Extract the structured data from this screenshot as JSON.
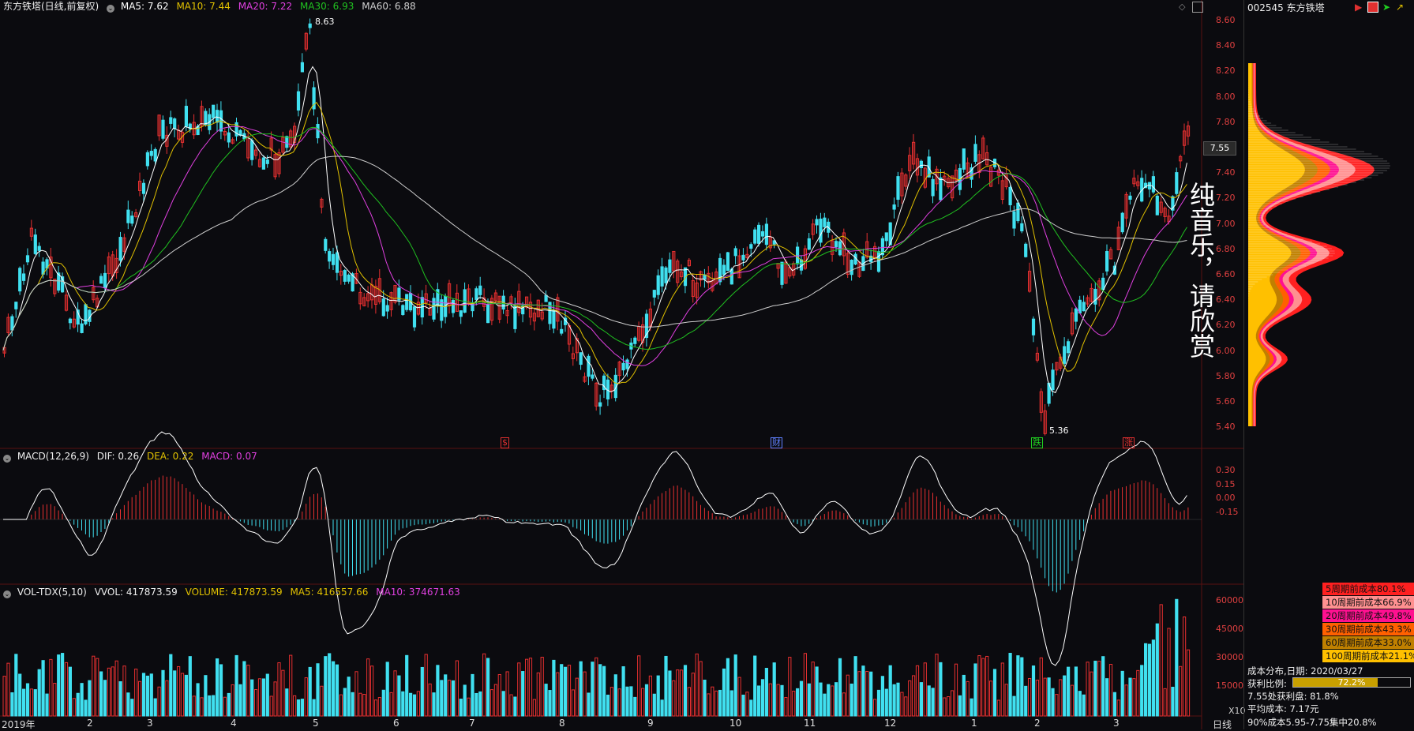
{
  "price_panel": {
    "title": "东方铁塔(日线,前复权)",
    "indicators": [
      {
        "name": "MA5",
        "value": "7.62",
        "color": "#ffffff"
      },
      {
        "name": "MA10",
        "value": "7.44",
        "color": "#e0c000"
      },
      {
        "name": "MA20",
        "value": "7.22",
        "color": "#e040e0"
      },
      {
        "name": "MA30",
        "value": "6.93",
        "color": "#20c020"
      },
      {
        "name": "MA60",
        "value": "6.88",
        "color": "#cfcfcf"
      }
    ],
    "y_ticks": [
      "8.60",
      "8.40",
      "8.20",
      "8.00",
      "7.80",
      "7.60",
      "7.40",
      "7.20",
      "7.00",
      "6.80",
      "6.60",
      "6.40",
      "6.20",
      "6.00",
      "5.80",
      "5.60",
      "5.40"
    ],
    "high_label": "8.63",
    "low_label": "5.36",
    "current_price": "7.55",
    "markers": [
      {
        "label": "$",
        "color": "#e03030"
      },
      {
        "label": "财",
        "color": "#6080ff"
      },
      {
        "label": "跌",
        "color": "#20d020"
      },
      {
        "label": "涨",
        "color": "#e03030"
      }
    ]
  },
  "macd_panel": {
    "title": "MACD(12,26,9)",
    "dif": "DIF: 0.26",
    "dea": "DEA: 0.22",
    "macd": "MACD: 0.07",
    "y_ticks": [
      "0.30",
      "0.15",
      "0.00",
      "-0.15"
    ]
  },
  "vol_panel": {
    "title": "VOL-TDX(5,10)",
    "vvol": "VVOL: 417873.59",
    "volume": "VOLUME: 417873.59",
    "ma5": "MA5: 416557.66",
    "ma10": "MA10: 374671.63",
    "y_ticks": [
      "60000",
      "45000",
      "30000",
      "15000"
    ],
    "unit": "X10"
  },
  "x_axis": {
    "labels": [
      "2019年",
      "2",
      "3",
      "4",
      "5",
      "6",
      "7",
      "8",
      "9",
      "10",
      "11",
      "12",
      "1",
      "2",
      "3"
    ],
    "period": "日线"
  },
  "sidebar": {
    "title": "002545 东方铁塔",
    "overlay_text": "纯音乐，请欣赏",
    "cost_legend": [
      {
        "label": "5周期前成本80.1%",
        "color": "#ff2020"
      },
      {
        "label": "10周期前成本66.9%",
        "color": "#ff9090"
      },
      {
        "label": "20周期前成本49.8%",
        "color": "#ff1090"
      },
      {
        "label": "30周期前成本43.3%",
        "color": "#ff6000"
      },
      {
        "label": "60周期前成本33.0%",
        "color": "#c08000"
      },
      {
        "label": "100周期前成本21.1%",
        "color": "#ffc000"
      }
    ],
    "date_line": "成本分布,日期: 2020/03/27",
    "profit_label": "获利比例:",
    "profit_value": "72.2%",
    "profit_fraction": 0.722,
    "profit_at_price": "7.55处获利盘: 81.8%",
    "avg_cost": "平均成本: 7.17元",
    "concentration": "90%成本5.95-7.75集中20.8%"
  }
}
